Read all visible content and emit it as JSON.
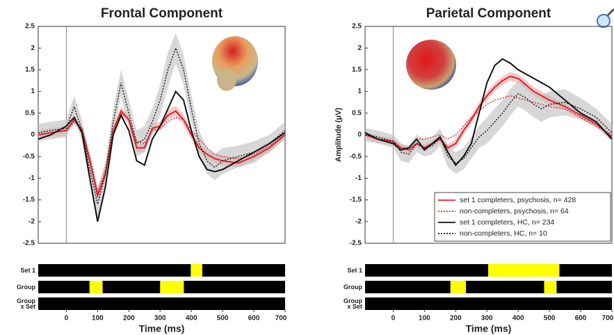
{
  "chart_data": [
    {
      "type": "line",
      "title": "Frontal Component",
      "vline": 0,
      "x": [
        -90,
        -50,
        0,
        25,
        50,
        75,
        100,
        125,
        150,
        175,
        200,
        225,
        250,
        275,
        300,
        325,
        350,
        375,
        400,
        425,
        450,
        475,
        500,
        550,
        600,
        650,
        700
      ],
      "xlim": [
        -90,
        700
      ],
      "ylim": [
        -2.5,
        2.5
      ],
      "yticks": [
        -2.5,
        -2,
        -1.5,
        -1,
        -0.5,
        0,
        0.5,
        1,
        1.5,
        2,
        2.5
      ],
      "series": [
        {
          "color": "#e0202a",
          "dash": "solid",
          "values": [
            0,
            0.05,
            0.1,
            0.35,
            0.1,
            -0.6,
            -1.4,
            -0.9,
            0.1,
            0.55,
            0.35,
            -0.3,
            -0.3,
            0.15,
            0.2,
            0.45,
            0.55,
            0.35,
            0,
            -0.3,
            -0.45,
            -0.55,
            -0.6,
            -0.65,
            -0.5,
            -0.3,
            0
          ],
          "band": [
            0.1,
            0.1,
            0.1,
            0.1,
            0.1,
            0.12,
            0.15,
            0.12,
            0.1,
            0.1,
            0.1,
            0.1,
            0.1,
            0.1,
            0.1,
            0.12,
            0.12,
            0.12,
            0.1,
            0.1,
            0.1,
            0.1,
            0.1,
            0.1,
            0.1,
            0.1,
            0.1
          ]
        },
        {
          "color": "#e0202a",
          "dash": "dotted",
          "values": [
            0,
            0.05,
            0.1,
            0.3,
            0.15,
            -0.5,
            -1.3,
            -0.8,
            0.1,
            0.5,
            0.35,
            -0.15,
            -0.2,
            0.1,
            0.15,
            0.3,
            0.4,
            0.35,
            0.1,
            -0.1,
            -0.3,
            -0.45,
            -0.5,
            -0.55,
            -0.45,
            -0.25,
            0
          ]
        },
        {
          "color": "#111111",
          "dash": "solid",
          "values": [
            -0.1,
            0,
            0.2,
            0.4,
            0.05,
            -1,
            -2,
            -1.2,
            0,
            0.45,
            0.1,
            -0.6,
            -0.7,
            -0.1,
            0.2,
            0.6,
            1,
            0.8,
            0.1,
            -0.5,
            -0.8,
            -0.85,
            -0.8,
            -0.6,
            -0.4,
            -0.2,
            0.05
          ]
        },
        {
          "color": "#111111",
          "dash": "dotted",
          "values": [
            0.05,
            0.1,
            0.15,
            0.65,
            0.1,
            -0.8,
            -1.6,
            -0.9,
            0.3,
            1.2,
            0.5,
            -0.2,
            -0.1,
            0.3,
            0.8,
            1.5,
            2,
            1.5,
            0.6,
            -0.2,
            -0.6,
            -0.75,
            -0.6,
            -0.5,
            -0.4,
            -0.2,
            0.1
          ],
          "band": [
            0.2,
            0.2,
            0.2,
            0.25,
            0.25,
            0.3,
            0.35,
            0.3,
            0.3,
            0.3,
            0.3,
            0.3,
            0.3,
            0.3,
            0.35,
            0.4,
            0.35,
            0.35,
            0.3,
            0.3,
            0.3,
            0.3,
            0.3,
            0.25,
            0.25,
            0.2,
            0.2
          ]
        }
      ],
      "significance": {
        "rows": [
          {
            "label": "Set 1",
            "intervals": [
              [
                398,
                435
              ]
            ]
          },
          {
            "label": "Group",
            "intervals": [
              [
                74,
                116
              ],
              [
                300,
                376
              ]
            ]
          },
          {
            "label": "Group x Set",
            "intervals": []
          }
        ],
        "xticks": [
          0,
          100,
          200,
          300,
          400,
          500,
          600,
          700
        ],
        "xlabel": "Time (ms)"
      }
    },
    {
      "type": "line",
      "title": "Parietal Component",
      "ylabel": "Amplitude (μV)",
      "vline": 0,
      "legend": "lower right",
      "x": [
        -90,
        -50,
        0,
        25,
        50,
        75,
        100,
        125,
        150,
        175,
        200,
        225,
        250,
        275,
        300,
        325,
        350,
        375,
        400,
        425,
        450,
        475,
        500,
        550,
        600,
        650,
        700
      ],
      "xlim": [
        -90,
        700
      ],
      "ylim": [
        -2.5,
        2.5
      ],
      "yticks": [
        -2.5,
        -2,
        -1.5,
        -1,
        -0.5,
        0,
        0.5,
        1,
        1.5,
        2,
        2.5
      ],
      "series": [
        {
          "name": "set 1 completers, psychosis, n= 428",
          "color": "#e0202a",
          "dash": "solid",
          "values": [
            0,
            -0.1,
            -0.15,
            -0.3,
            -0.35,
            -0.2,
            -0.3,
            -0.2,
            -0.1,
            -0.3,
            -0.2,
            0.1,
            0.35,
            0.65,
            0.9,
            1.1,
            1.25,
            1.35,
            1.3,
            1.15,
            1,
            0.9,
            0.8,
            0.65,
            0.45,
            0.25,
            -0.05
          ],
          "band": [
            0.08,
            0.08,
            0.08,
            0.08,
            0.08,
            0.08,
            0.08,
            0.08,
            0.08,
            0.08,
            0.1,
            0.1,
            0.1,
            0.1,
            0.1,
            0.1,
            0.1,
            0.1,
            0.1,
            0.1,
            0.1,
            0.1,
            0.1,
            0.08,
            0.08,
            0.08,
            0.08
          ]
        },
        {
          "name": "non-completers, psychosis, n= 64",
          "color": "#e0202a",
          "dash": "dotted",
          "values": [
            0,
            -0.1,
            -0.15,
            -0.3,
            -0.3,
            -0.1,
            -0.1,
            -0.05,
            0,
            -0.1,
            0,
            0.2,
            0.4,
            0.55,
            0.7,
            0.8,
            0.85,
            0.9,
            0.85,
            0.8,
            0.75,
            0.7,
            0.65,
            0.6,
            0.4,
            0.2,
            0
          ]
        },
        {
          "name": "set 1 completers, HC, n= 234",
          "color": "#111111",
          "dash": "solid",
          "values": [
            0.05,
            -0.1,
            -0.2,
            -0.35,
            -0.3,
            -0.1,
            -0.35,
            -0.2,
            -0.05,
            -0.4,
            -0.7,
            -0.5,
            -0.2,
            0.5,
            1.2,
            1.6,
            1.75,
            1.65,
            1.5,
            1.4,
            1.3,
            1.2,
            1.1,
            0.8,
            0.5,
            0.3,
            -0.1
          ]
        },
        {
          "name": "non-completers, HC, n= 10",
          "color": "#111111",
          "dash": "dotted",
          "values": [
            0,
            -0.05,
            -0.15,
            -0.4,
            -0.45,
            -0.2,
            -0.3,
            -0.25,
            -0.05,
            -0.5,
            -0.65,
            -0.55,
            -0.3,
            -0.05,
            0.1,
            0.3,
            0.5,
            0.75,
            0.95,
            0.85,
            0.7,
            0.6,
            0.7,
            0.75,
            0.6,
            0.4,
            0.05
          ],
          "band": [
            0.15,
            0.15,
            0.15,
            0.2,
            0.2,
            0.2,
            0.2,
            0.2,
            0.2,
            0.25,
            0.25,
            0.25,
            0.25,
            0.25,
            0.3,
            0.3,
            0.3,
            0.3,
            0.3,
            0.3,
            0.3,
            0.3,
            0.3,
            0.3,
            0.25,
            0.2,
            0.2
          ]
        }
      ],
      "significance": {
        "rows": [
          {
            "label": "Set 1",
            "intervals": [
              [
                304,
                532
              ]
            ]
          },
          {
            "label": "Group",
            "intervals": [
              [
                183,
                233
              ],
              [
                483,
                523
              ]
            ]
          },
          {
            "label": "Group x Set",
            "intervals": []
          }
        ],
        "xticks": [
          0,
          100,
          200,
          300,
          400,
          500,
          600,
          700
        ],
        "xlabel": "Time (ms)"
      }
    }
  ]
}
